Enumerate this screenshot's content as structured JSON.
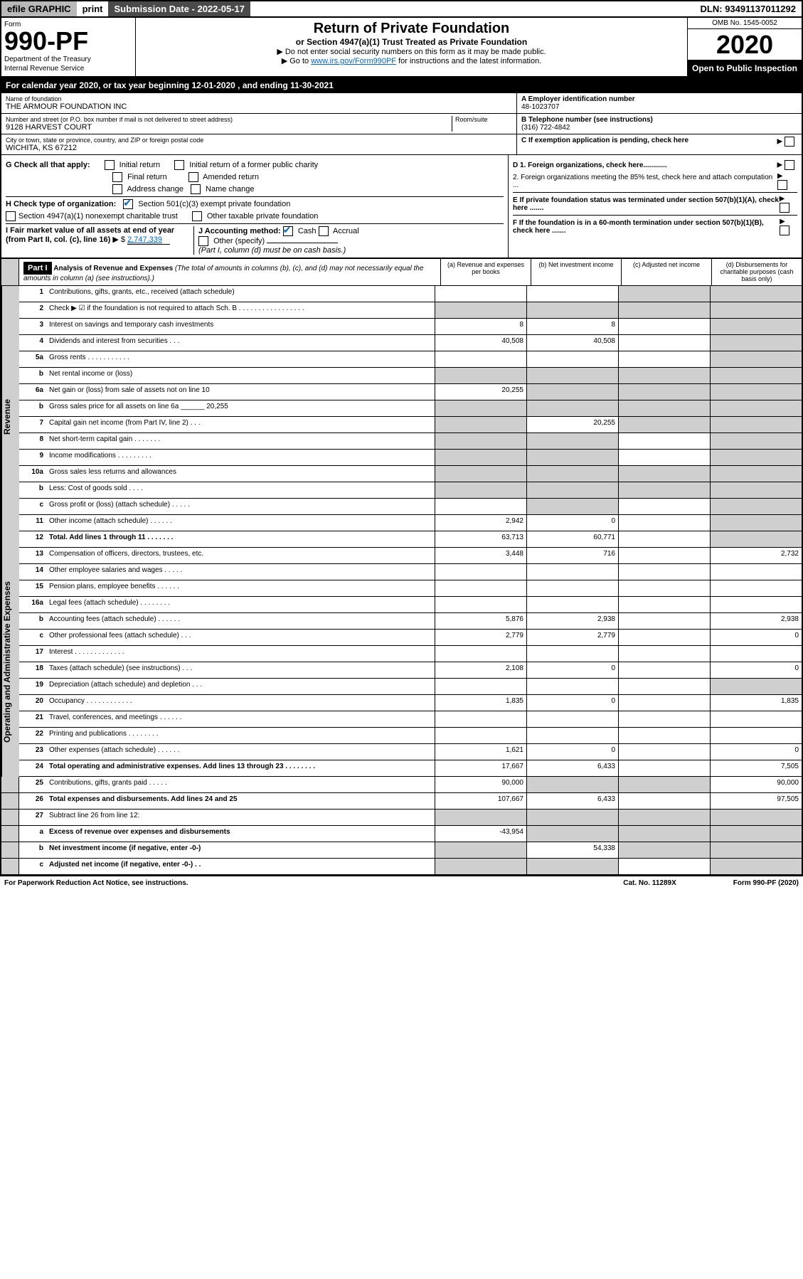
{
  "colors": {
    "topbar_grey": "#b8b8b8",
    "dark_bar": "#4a4a4a",
    "black": "#000000",
    "grey_cell": "#cfcfcf",
    "link_blue": "#0066cc",
    "white": "#ffffff"
  },
  "topbar": {
    "efile": "efile GRAPHIC",
    "print": "print",
    "subdate": "Submission Date - 2022-05-17",
    "dln": "DLN: 93491137011292"
  },
  "header": {
    "form_label": "Form",
    "form_num": "990-PF",
    "dept": "Department of the Treasury",
    "irs": "Internal Revenue Service",
    "title": "Return of Private Foundation",
    "subtitle": "or Section 4947(a)(1) Trust Treated as Private Foundation",
    "instr1": "▶ Do not enter social security numbers on this form as it may be made public.",
    "instr2_pre": "▶ Go to ",
    "instr2_link": "www.irs.gov/Form990PF",
    "instr2_post": " for instructions and the latest information.",
    "omb": "OMB No. 1545-0052",
    "year": "2020",
    "open": "Open to Public Inspection"
  },
  "calyear": "For calendar year 2020, or tax year beginning 12-01-2020          , and ending 11-30-2021",
  "info": {
    "name_label": "Name of foundation",
    "name": "THE ARMOUR FOUNDATION INC",
    "addr_label": "Number and street (or P.O. box number if mail is not delivered to street address)",
    "room_label": "Room/suite",
    "addr": "9128 HARVEST COURT",
    "city_label": "City or town, state or province, country, and ZIP or foreign postal code",
    "city": "WICHITA, KS  67212",
    "a_label": "A Employer identification number",
    "a_val": "48-1023707",
    "b_label": "B Telephone number (see instructions)",
    "b_val": "(316) 722-4842",
    "c_label": "C If exemption application is pending, check here",
    "d1": "D 1. Foreign organizations, check here............",
    "d2": "2. Foreign organizations meeting the 85% test, check here and attach computation ...",
    "e": "E  If private foundation status was terminated under section 507(b)(1)(A), check here .......",
    "f": "F  If the foundation is in a 60-month termination under section 507(b)(1)(B), check here ......."
  },
  "g": {
    "label": "G Check all that apply:",
    "opts": [
      "Initial return",
      "Initial return of a former public charity",
      "Final return",
      "Amended return",
      "Address change",
      "Name change"
    ]
  },
  "h": {
    "label": "H Check type of organization:",
    "opt1": "Section 501(c)(3) exempt private foundation",
    "opt2": "Section 4947(a)(1) nonexempt charitable trust",
    "opt3": "Other taxable private foundation"
  },
  "i": {
    "label": "I Fair market value of all assets at end of year (from Part II, col. (c), line 16)",
    "val": "2,747,339"
  },
  "j": {
    "label": "J Accounting method:",
    "cash": "Cash",
    "accrual": "Accrual",
    "other": "Other (specify)",
    "note": "(Part I, column (d) must be on cash basis.)"
  },
  "part1": {
    "hdr": "Part I",
    "title": "Analysis of Revenue and Expenses",
    "title_note": "(The total of amounts in columns (b), (c), and (d) may not necessarily equal the amounts in column (a) (see instructions).)",
    "col_a": "(a)  Revenue and expenses per books",
    "col_b": "(b)  Net investment income",
    "col_c": "(c)  Adjusted net income",
    "col_d": "(d)  Disbursements for charitable purposes (cash basis only)"
  },
  "side_labels": {
    "rev": "Revenue",
    "ops": "Operating and Administrative Expenses"
  },
  "rows": [
    {
      "n": "1",
      "d": "Contributions, gifts, grants, etc., received (attach schedule)",
      "a": "",
      "b": "",
      "c": "g",
      "dd": "g"
    },
    {
      "n": "2",
      "d": "Check ▶ ☑ if the foundation is not required to attach Sch. B  . . . . . . . . . . . . . . . . .",
      "a": "g",
      "b": "g",
      "c": "g",
      "dd": "g"
    },
    {
      "n": "3",
      "d": "Interest on savings and temporary cash investments",
      "a": "8",
      "b": "8",
      "c": "",
      "dd": "g"
    },
    {
      "n": "4",
      "d": "Dividends and interest from securities  .  .  .",
      "a": "40,508",
      "b": "40,508",
      "c": "",
      "dd": "g"
    },
    {
      "n": "5a",
      "d": "Gross rents  .  .  .  .  .  .  .  .  .  .  .",
      "a": "",
      "b": "",
      "c": "",
      "dd": "g"
    },
    {
      "n": "b",
      "d": "Net rental income or (loss)  ",
      "a": "g",
      "b": "g",
      "c": "g",
      "dd": "g"
    },
    {
      "n": "6a",
      "d": "Net gain or (loss) from sale of assets not on line 10",
      "a": "20,255",
      "b": "g",
      "c": "g",
      "dd": "g"
    },
    {
      "n": "b",
      "d": "Gross sales price for all assets on line 6a ______ 20,255",
      "a": "g",
      "b": "g",
      "c": "g",
      "dd": "g"
    },
    {
      "n": "7",
      "d": "Capital gain net income (from Part IV, line 2)  .  .  .",
      "a": "g",
      "b": "20,255",
      "c": "g",
      "dd": "g"
    },
    {
      "n": "8",
      "d": "Net short-term capital gain  .  .  .  .  .  .  .",
      "a": "g",
      "b": "g",
      "c": "",
      "dd": "g"
    },
    {
      "n": "9",
      "d": "Income modifications .  .  .  .  .  .  .  .  .",
      "a": "g",
      "b": "g",
      "c": "",
      "dd": "g"
    },
    {
      "n": "10a",
      "d": "Gross sales less returns and allowances",
      "a": "g",
      "b": "g",
      "c": "g",
      "dd": "g"
    },
    {
      "n": "b",
      "d": "Less: Cost of goods sold  .  .  .  .",
      "a": "g",
      "b": "g",
      "c": "g",
      "dd": "g"
    },
    {
      "n": "c",
      "d": "Gross profit or (loss) (attach schedule)  .  .  .  .  .",
      "a": "",
      "b": "g",
      "c": "",
      "dd": "g"
    },
    {
      "n": "11",
      "d": "Other income (attach schedule)  .  .  .  .  .  .",
      "a": "2,942",
      "b": "0",
      "c": "",
      "dd": "g"
    },
    {
      "n": "12",
      "d": "Total. Add lines 1 through 11  .  .  .  .  .  .  .",
      "a": "63,713",
      "b": "60,771",
      "c": "",
      "dd": "g",
      "bold": true
    },
    {
      "n": "13",
      "d": "Compensation of officers, directors, trustees, etc.",
      "a": "3,448",
      "b": "716",
      "c": "",
      "dd": "2,732"
    },
    {
      "n": "14",
      "d": "Other employee salaries and wages  .  .  .  .  .",
      "a": "",
      "b": "",
      "c": "",
      "dd": ""
    },
    {
      "n": "15",
      "d": "Pension plans, employee benefits .  .  .  .  .  .",
      "a": "",
      "b": "",
      "c": "",
      "dd": ""
    },
    {
      "n": "16a",
      "d": "Legal fees (attach schedule) .  .  .  .  .  .  .  .",
      "a": "",
      "b": "",
      "c": "",
      "dd": ""
    },
    {
      "n": "b",
      "d": "Accounting fees (attach schedule) .  .  .  .  .  .",
      "a": "5,876",
      "b": "2,938",
      "c": "",
      "dd": "2,938"
    },
    {
      "n": "c",
      "d": "Other professional fees (attach schedule)  .  .  .",
      "a": "2,779",
      "b": "2,779",
      "c": "",
      "dd": "0"
    },
    {
      "n": "17",
      "d": "Interest .  .  .  .  .  .  .  .  .  .  .  .  .",
      "a": "",
      "b": "",
      "c": "",
      "dd": ""
    },
    {
      "n": "18",
      "d": "Taxes (attach schedule) (see instructions)  .  .  .",
      "a": "2,108",
      "b": "0",
      "c": "",
      "dd": "0"
    },
    {
      "n": "19",
      "d": "Depreciation (attach schedule) and depletion  .  .  .",
      "a": "",
      "b": "",
      "c": "",
      "dd": "g"
    },
    {
      "n": "20",
      "d": "Occupancy .  .  .  .  .  .  .  .  .  .  .  .",
      "a": "1,835",
      "b": "0",
      "c": "",
      "dd": "1,835"
    },
    {
      "n": "21",
      "d": "Travel, conferences, and meetings .  .  .  .  .  .",
      "a": "",
      "b": "",
      "c": "",
      "dd": ""
    },
    {
      "n": "22",
      "d": "Printing and publications .  .  .  .  .  .  .  .",
      "a": "",
      "b": "",
      "c": "",
      "dd": ""
    },
    {
      "n": "23",
      "d": "Other expenses (attach schedule) .  .  .  .  .  .",
      "a": "1,621",
      "b": "0",
      "c": "",
      "dd": "0"
    },
    {
      "n": "24",
      "d": "Total operating and administrative expenses. Add lines 13 through 23  .  .  .  .  .  .  .  .",
      "a": "17,667",
      "b": "6,433",
      "c": "",
      "dd": "7,505",
      "bold": true
    },
    {
      "n": "25",
      "d": "Contributions, gifts, grants paid  .  .  .  .  .",
      "a": "90,000",
      "b": "g",
      "c": "g",
      "dd": "90,000"
    },
    {
      "n": "26",
      "d": "Total expenses and disbursements. Add lines 24 and 25",
      "a": "107,667",
      "b": "6,433",
      "c": "",
      "dd": "97,505",
      "bold": true
    },
    {
      "n": "27",
      "d": "Subtract line 26 from line 12:",
      "a": "g",
      "b": "g",
      "c": "g",
      "dd": "g"
    },
    {
      "n": "a",
      "d": "Excess of revenue over expenses and disbursements",
      "a": "-43,954",
      "b": "g",
      "c": "g",
      "dd": "g",
      "bold": true
    },
    {
      "n": "b",
      "d": "Net investment income (if negative, enter -0-)",
      "a": "g",
      "b": "54,338",
      "c": "g",
      "dd": "g",
      "bold": true
    },
    {
      "n": "c",
      "d": "Adjusted net income (if negative, enter -0-)  .  .",
      "a": "g",
      "b": "g",
      "c": "",
      "dd": "g",
      "bold": true
    }
  ],
  "footer": {
    "left": "For Paperwork Reduction Act Notice, see instructions.",
    "mid": "Cat. No. 11289X",
    "right": "Form 990-PF (2020)"
  }
}
